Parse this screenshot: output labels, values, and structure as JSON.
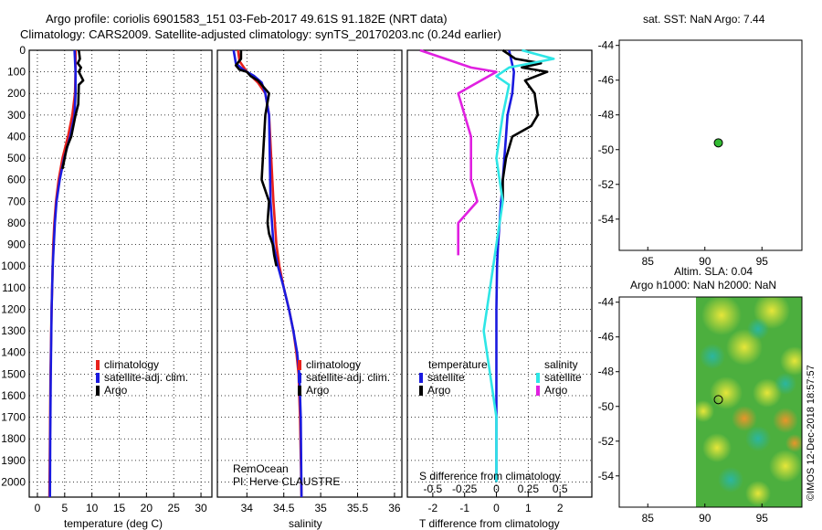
{
  "header": {
    "line1": "Argo profile: coriolis 6901583_151 03-Feb-2017 49.61S 91.182E (NRT data)",
    "line2": "Climatology: CARS2009. Satellite-adjusted climatology: synTS_20170203.nc (0.24d earlier)"
  },
  "colors": {
    "climatology": "#e8211c",
    "satellite": "#1a1adf",
    "argo": "#000000",
    "sat_s": "#2ee6e6",
    "argo_s": "#e020e0",
    "map_point": "#33bb33"
  },
  "depth_ticks": [
    0,
    100,
    200,
    300,
    400,
    500,
    600,
    700,
    800,
    900,
    1000,
    1100,
    1200,
    1300,
    1400,
    1500,
    1600,
    1700,
    1800,
    1900,
    2000
  ],
  "chart_data": [
    {
      "type": "line",
      "panel": "temperature",
      "xlabel": "temperature (deg C)",
      "ylabel": "depth",
      "xlim": [
        -1.5,
        32
      ],
      "ylim": [
        2070,
        0
      ],
      "xticks": [
        "0",
        "5",
        "10",
        "15",
        "20",
        "25",
        "30"
      ],
      "legend": {
        "labels": [
          "climatology",
          "satellite-adj. clim.",
          "Argo"
        ]
      },
      "series": [
        {
          "name": "climatology",
          "color": "#e8211c",
          "x": [
            7.0,
            7.0,
            6.9,
            6.4,
            5.6,
            4.6,
            3.9,
            3.4,
            3.1,
            2.9,
            2.8,
            2.6,
            2.4,
            2.3,
            2.2
          ],
          "y": [
            0,
            100,
            200,
            300,
            400,
            500,
            600,
            700,
            800,
            900,
            1000,
            1200,
            1500,
            1800,
            2070
          ]
        },
        {
          "name": "satellite-adj. clim.",
          "color": "#1a1adf",
          "x": [
            6.8,
            7.0,
            7.0,
            6.8,
            6.0,
            4.9,
            4.1,
            3.5,
            3.2,
            3.0,
            2.8,
            2.6,
            2.45,
            2.35,
            2.3
          ],
          "y": [
            0,
            100,
            200,
            300,
            400,
            500,
            600,
            700,
            800,
            900,
            1000,
            1200,
            1500,
            1800,
            2070
          ]
        },
        {
          "name": "Argo",
          "color": "#000000",
          "x": [
            7.6,
            7.8,
            7.4,
            8.0,
            7.6,
            8.4,
            7.6,
            7.5,
            7.0,
            6.2,
            5.4,
            5.0,
            4.6
          ],
          "y": [
            0,
            40,
            60,
            80,
            100,
            140,
            160,
            250,
            300,
            400,
            450,
            500,
            550
          ]
        }
      ]
    },
    {
      "type": "line",
      "panel": "salinity",
      "xlabel": "salinity",
      "ylabel": "depth",
      "xlim": [
        33.6,
        36.1
      ],
      "ylim": [
        2070,
        0
      ],
      "xticks": [
        "34",
        "34.5",
        "35",
        "35.5",
        "36"
      ],
      "legend": {
        "labels": [
          "climatology",
          "satellite-adj. clim.",
          "Argo"
        ]
      },
      "series": [
        {
          "name": "climatology",
          "color": "#e8211c",
          "x": [
            33.88,
            33.9,
            34.0,
            34.15,
            34.25,
            34.3,
            34.33,
            34.36,
            34.4,
            34.44,
            34.5,
            34.57,
            34.63,
            34.67,
            34.7,
            34.72,
            34.74
          ],
          "y": [
            0,
            50,
            100,
            150,
            200,
            300,
            500,
            700,
            900,
            1000,
            1100,
            1200,
            1300,
            1400,
            1500,
            1700,
            2070
          ]
        },
        {
          "name": "satellite-adj. clim.",
          "color": "#1a1adf",
          "x": [
            33.82,
            33.85,
            33.95,
            34.1,
            34.2,
            34.25,
            34.3,
            34.31,
            34.32,
            34.36,
            34.42,
            34.5,
            34.57,
            34.63,
            34.68,
            34.71,
            34.73,
            34.74
          ],
          "y": [
            0,
            60,
            90,
            120,
            150,
            200,
            300,
            500,
            700,
            900,
            1000,
            1100,
            1200,
            1300,
            1400,
            1500,
            1700,
            2070
          ]
        },
        {
          "name": "Argo",
          "color": "#000000",
          "x": [
            33.92,
            33.92,
            33.85,
            33.9,
            34.0,
            34.05,
            34.15,
            34.2,
            34.3,
            34.25,
            34.2,
            34.3,
            34.28,
            34.3,
            34.35,
            34.37,
            34.4
          ],
          "y": [
            0,
            40,
            70,
            90,
            100,
            120,
            140,
            160,
            200,
            300,
            600,
            700,
            800,
            850,
            900,
            950,
            1000
          ]
        }
      ]
    },
    {
      "type": "line",
      "panel": "difference",
      "xlabel": "T difference from climatology",
      "xlabel_top": "S difference from climatology",
      "xlim": [
        -2.8,
        3.0
      ],
      "ylim": [
        2070,
        0
      ],
      "xticks": [
        "-2",
        "-1",
        "0",
        "1",
        "2"
      ],
      "xticks_s": [
        "-0.5",
        "-0.25",
        "0",
        "0.25",
        "0.5"
      ],
      "legend": {
        "temperature_title": "temperature",
        "salinity_title": "salinity",
        "labels": [
          "satellite",
          "Argo",
          "satellite",
          "Argo"
        ]
      },
      "series": [
        {
          "name": "T satellite",
          "color": "#1a1adf",
          "x": [
            0.4,
            0.55,
            0.5,
            0.35,
            0.3,
            0.25,
            0.2,
            0.15,
            0.1,
            0.05,
            0.02,
            0.0,
            0.0,
            0.0
          ],
          "y": [
            0,
            100,
            200,
            300,
            400,
            500,
            600,
            700,
            800,
            900,
            1000,
            1200,
            1500,
            2000
          ]
        },
        {
          "name": "T Argo",
          "color": "#000000",
          "x": [
            0.2,
            0.6,
            1.4,
            0.8,
            1.6,
            0.9,
            1.2,
            1.3,
            1.1,
            0.5,
            0.3,
            0.2,
            0.2
          ],
          "y": [
            0,
            40,
            60,
            80,
            100,
            140,
            200,
            300,
            350,
            400,
            500,
            600,
            700
          ]
        },
        {
          "name": "S satellite",
          "color": "#2ee6e6",
          "x": [
            0.2,
            0.45,
            0.1,
            0.0,
            0.1,
            0.05,
            0.0,
            0.05,
            0.0,
            -0.05,
            -0.1,
            -0.05,
            0.0,
            0.0
          ],
          "y": [
            0,
            40,
            80,
            120,
            160,
            300,
            500,
            700,
            900,
            1100,
            1300,
            1500,
            1700,
            2000
          ]
        },
        {
          "name": "S Argo",
          "color": "#e020e0",
          "x": [
            -0.6,
            -0.4,
            -0.2,
            0.0,
            -0.3,
            -0.2,
            -0.2,
            -0.15,
            -0.3,
            -0.3
          ],
          "y": [
            0,
            40,
            80,
            100,
            200,
            400,
            600,
            700,
            800,
            950
          ]
        }
      ]
    }
  ],
  "maps": {
    "sst": {
      "title": "sat. SST: NaN Argo: 7.44",
      "yticks": [
        "-44",
        "-46",
        "-48",
        "-50",
        "-52",
        "-54"
      ],
      "xticks": [
        "85",
        "90",
        "95"
      ],
      "point": {
        "lon": 91.182,
        "lat": -49.61
      }
    },
    "sla": {
      "title1": "Altim. SLA: 0.04",
      "title2": "Argo h1000: NaN h2000: NaN",
      "yticks": [
        "-44",
        "-46",
        "-48",
        "-50",
        "-52",
        "-54"
      ],
      "xticks": [
        "85",
        "90",
        "95"
      ],
      "point": {
        "lon": 91.182,
        "lat": -49.61
      }
    }
  },
  "credits": {
    "line1": "RemOcean",
    "line2": "PI: Herve CLAUSTRE",
    "watermark": "©IMOS 12-Dec-2018 18:57:57"
  }
}
